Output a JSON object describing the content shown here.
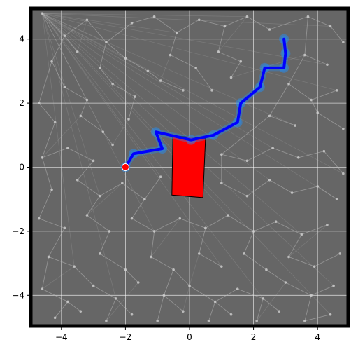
{
  "colors": {
    "background": "#666666",
    "grid": "#ffffff",
    "tree": "#b8b8b8",
    "obstacle": "#ff0000",
    "path": "#0000ff",
    "path_glow": "#1e90ff",
    "start": "#ff0000",
    "wall": "#000000"
  },
  "chart_data": {
    "type": "scatter",
    "title": "",
    "xlabel": "",
    "ylabel": "",
    "xlim": [
      -5,
      5
    ],
    "ylim": [
      -5,
      5
    ],
    "grid": true,
    "xticks": [
      -4,
      -2,
      0,
      2,
      4
    ],
    "yticks": [
      -4,
      -2,
      0,
      2,
      4
    ],
    "xtick_labels": [
      "−4",
      "−2",
      "0",
      "2",
      "4"
    ],
    "ytick_labels": [
      "−4",
      "−2",
      "0",
      "2",
      "4"
    ],
    "obstacle": {
      "shape": "rotated-rectangle",
      "corners": [
        [
          -0.52,
          0.98
        ],
        [
          0.5,
          0.9
        ],
        [
          0.42,
          -0.95
        ],
        [
          -0.55,
          -0.87
        ]
      ]
    },
    "start": {
      "x": -2.0,
      "y": 0.0
    },
    "path": [
      [
        -2.0,
        0.0
      ],
      [
        -1.75,
        0.42
      ],
      [
        -0.85,
        0.58
      ],
      [
        -1.05,
        1.1
      ],
      [
        0.05,
        0.85
      ],
      [
        0.75,
        1.0
      ],
      [
        1.5,
        1.4
      ],
      [
        1.6,
        2.0
      ],
      [
        2.2,
        2.5
      ],
      [
        2.35,
        3.1
      ],
      [
        2.95,
        3.1
      ],
      [
        3.0,
        3.55
      ],
      [
        2.95,
        4.0
      ]
    ],
    "tree_nodes": [
      [
        -4.6,
        4.8
      ],
      [
        -3.9,
        4.1
      ],
      [
        -3.2,
        4.6
      ],
      [
        -2.6,
        3.9
      ],
      [
        -1.8,
        4.5
      ],
      [
        -1.1,
        4.7
      ],
      [
        -0.4,
        4.2
      ],
      [
        0.3,
        4.6
      ],
      [
        1.1,
        4.4
      ],
      [
        1.8,
        4.7
      ],
      [
        2.5,
        4.3
      ],
      [
        3.7,
        4.7
      ],
      [
        4.4,
        4.4
      ],
      [
        4.8,
        3.9
      ],
      [
        -4.3,
        3.3
      ],
      [
        -3.5,
        3.6
      ],
      [
        -2.8,
        3.1
      ],
      [
        -2.0,
        3.4
      ],
      [
        -1.3,
        3.0
      ],
      [
        -0.6,
        3.5
      ],
      [
        0.2,
        3.1
      ],
      [
        0.9,
        3.6
      ],
      [
        1.6,
        3.3
      ],
      [
        3.6,
        3.5
      ],
      [
        4.3,
        3.2
      ],
      [
        -4.7,
        2.0
      ],
      [
        -3.9,
        2.5
      ],
      [
        -3.2,
        2.1
      ],
      [
        -2.4,
        2.6
      ],
      [
        -1.7,
        2.2
      ],
      [
        -0.9,
        2.7
      ],
      [
        -0.2,
        2.4
      ],
      [
        0.7,
        2.4
      ],
      [
        1.3,
        2.8
      ],
      [
        3.1,
        2.6
      ],
      [
        3.8,
        2.1
      ],
      [
        4.6,
        2.4
      ],
      [
        -4.2,
        1.4
      ],
      [
        -3.4,
        1.6
      ],
      [
        -2.7,
        1.1
      ],
      [
        -1.9,
        1.5
      ],
      [
        2.5,
        1.6
      ],
      [
        3.3,
        1.3
      ],
      [
        4.0,
        1.7
      ],
      [
        4.8,
        1.2
      ],
      [
        -4.6,
        0.3
      ],
      [
        -3.8,
        0.6
      ],
      [
        -3.0,
        0.2
      ],
      [
        -2.4,
        0.7
      ],
      [
        1.0,
        0.4
      ],
      [
        1.8,
        0.2
      ],
      [
        2.6,
        0.6
      ],
      [
        3.4,
        0.3
      ],
      [
        4.2,
        0.5
      ],
      [
        4.8,
        -0.2
      ],
      [
        -4.3,
        -0.7
      ],
      [
        -3.5,
        -0.4
      ],
      [
        -2.8,
        -0.9
      ],
      [
        -2.1,
        -0.5
      ],
      [
        -1.4,
        -1.0
      ],
      [
        -0.9,
        -0.3
      ],
      [
        1.0,
        -0.5
      ],
      [
        1.8,
        -0.9
      ],
      [
        2.5,
        -0.4
      ],
      [
        3.2,
        -0.8
      ],
      [
        4.0,
        -0.6
      ],
      [
        4.6,
        -1.0
      ],
      [
        -4.7,
        -1.6
      ],
      [
        -3.9,
        -1.9
      ],
      [
        -3.2,
        -1.5
      ],
      [
        -2.5,
        -2.0
      ],
      [
        -1.8,
        -1.6
      ],
      [
        -1.1,
        -2.0
      ],
      [
        -0.3,
        -1.6
      ],
      [
        0.5,
        -1.9
      ],
      [
        1.2,
        -1.5
      ],
      [
        2.0,
        -2.0
      ],
      [
        2.7,
        -1.7
      ],
      [
        3.5,
        -2.1
      ],
      [
        4.3,
        -1.8
      ],
      [
        -4.4,
        -2.8
      ],
      [
        -3.6,
        -3.1
      ],
      [
        -2.8,
        -2.7
      ],
      [
        -2.0,
        -3.2
      ],
      [
        -1.2,
        -2.8
      ],
      [
        -0.5,
        -3.2
      ],
      [
        0.3,
        -2.7
      ],
      [
        1.0,
        -3.1
      ],
      [
        1.7,
        -2.7
      ],
      [
        2.4,
        -3.2
      ],
      [
        3.1,
        -2.8
      ],
      [
        3.9,
        -3.1
      ],
      [
        4.7,
        -2.7
      ],
      [
        -4.6,
        -3.8
      ],
      [
        -3.8,
        -4.2
      ],
      [
        -3.0,
        -3.7
      ],
      [
        -2.3,
        -4.1
      ],
      [
        -1.6,
        -3.6
      ],
      [
        -0.8,
        -4.0
      ],
      [
        0.0,
        -3.7
      ],
      [
        0.8,
        -4.2
      ],
      [
        1.5,
        -3.8
      ],
      [
        2.3,
        -4.1
      ],
      [
        3.0,
        -3.6
      ],
      [
        3.8,
        -4.0
      ],
      [
        4.5,
        -3.7
      ],
      [
        -4.2,
        -4.7
      ],
      [
        -3.4,
        -4.5
      ],
      [
        -2.6,
        -4.8
      ],
      [
        -1.8,
        -4.6
      ],
      [
        -1.0,
        -4.8
      ],
      [
        -0.2,
        -4.5
      ],
      [
        0.6,
        -4.8
      ],
      [
        1.3,
        -4.6
      ],
      [
        2.1,
        -4.8
      ],
      [
        2.8,
        -4.5
      ],
      [
        3.6,
        -4.8
      ],
      [
        4.4,
        -4.6
      ]
    ]
  }
}
